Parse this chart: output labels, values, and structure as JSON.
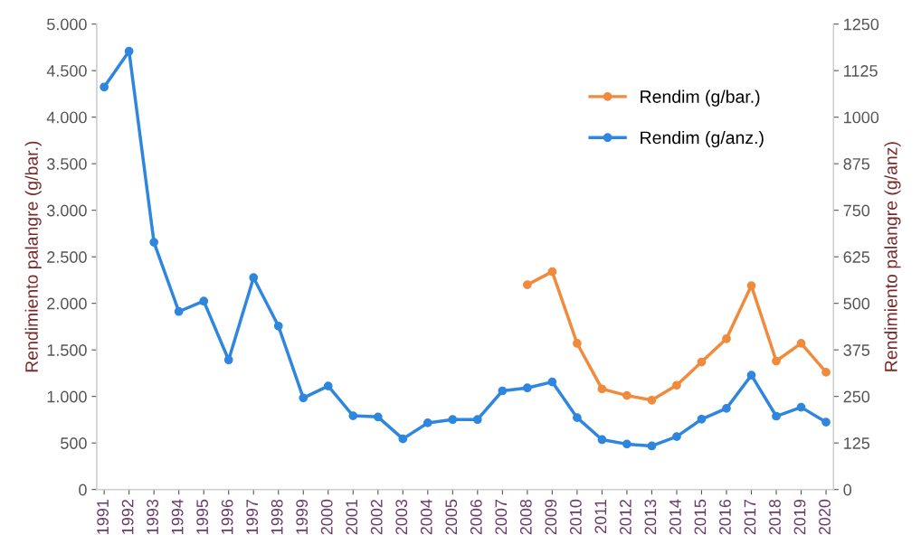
{
  "chart_data": {
    "type": "line",
    "ylabel": "Rendimiento palangre (g/bar.)",
    "y2label": "Rendimiento palangre (g/anz)",
    "categories": [
      "1991",
      "1992",
      "1993",
      "1994",
      "1995",
      "1996",
      "1997",
      "1998",
      "1999",
      "2000",
      "2001",
      "2002",
      "2003",
      "2004",
      "2005",
      "2006",
      "2007",
      "2008",
      "2009",
      "2010",
      "2011",
      "2012",
      "2013",
      "2014",
      "2015",
      "2016",
      "2017",
      "2018",
      "2019",
      "2020"
    ],
    "series": [
      {
        "name": "Rendim (g/bar.)",
        "color": "#f08a3c",
        "values": [
          null,
          null,
          null,
          null,
          null,
          null,
          null,
          null,
          null,
          null,
          null,
          null,
          null,
          null,
          null,
          null,
          null,
          2200,
          2340,
          1570,
          1080,
          1010,
          960,
          1120,
          1370,
          1620,
          2190,
          1380,
          1570,
          1260
        ]
      },
      {
        "name": "Rendim (g/anz.)",
        "color": "#2e86de",
        "axis": "y2",
        "values": [
          1081,
          1177,
          664,
          478,
          506,
          348,
          569,
          439,
          246,
          278,
          198,
          195,
          136,
          179,
          188,
          188,
          265,
          273,
          289,
          193,
          134,
          122,
          117,
          142,
          189,
          218,
          307,
          197,
          221,
          181
        ]
      }
    ],
    "ylim": [
      0,
      5000
    ],
    "yticks": [
      {
        "value": 0,
        "label": "0"
      },
      {
        "value": 500,
        "label": "500"
      },
      {
        "value": 1000,
        "label": "1.000"
      },
      {
        "value": 1500,
        "label": "1.500"
      },
      {
        "value": 2000,
        "label": "2.000"
      },
      {
        "value": 2500,
        "label": "2.500"
      },
      {
        "value": 3000,
        "label": "3.000"
      },
      {
        "value": 3500,
        "label": "3.500"
      },
      {
        "value": 4000,
        "label": "4.000"
      },
      {
        "value": 4500,
        "label": "4.500"
      },
      {
        "value": 5000,
        "label": "5.000"
      }
    ],
    "y2lim": [
      0,
      1250
    ],
    "y2ticks": [
      0,
      125,
      250,
      375,
      500,
      625,
      750,
      875,
      1000,
      1125,
      1250
    ],
    "marker": "circle",
    "line_style": "solid",
    "grid": false,
    "legend": "top right"
  }
}
